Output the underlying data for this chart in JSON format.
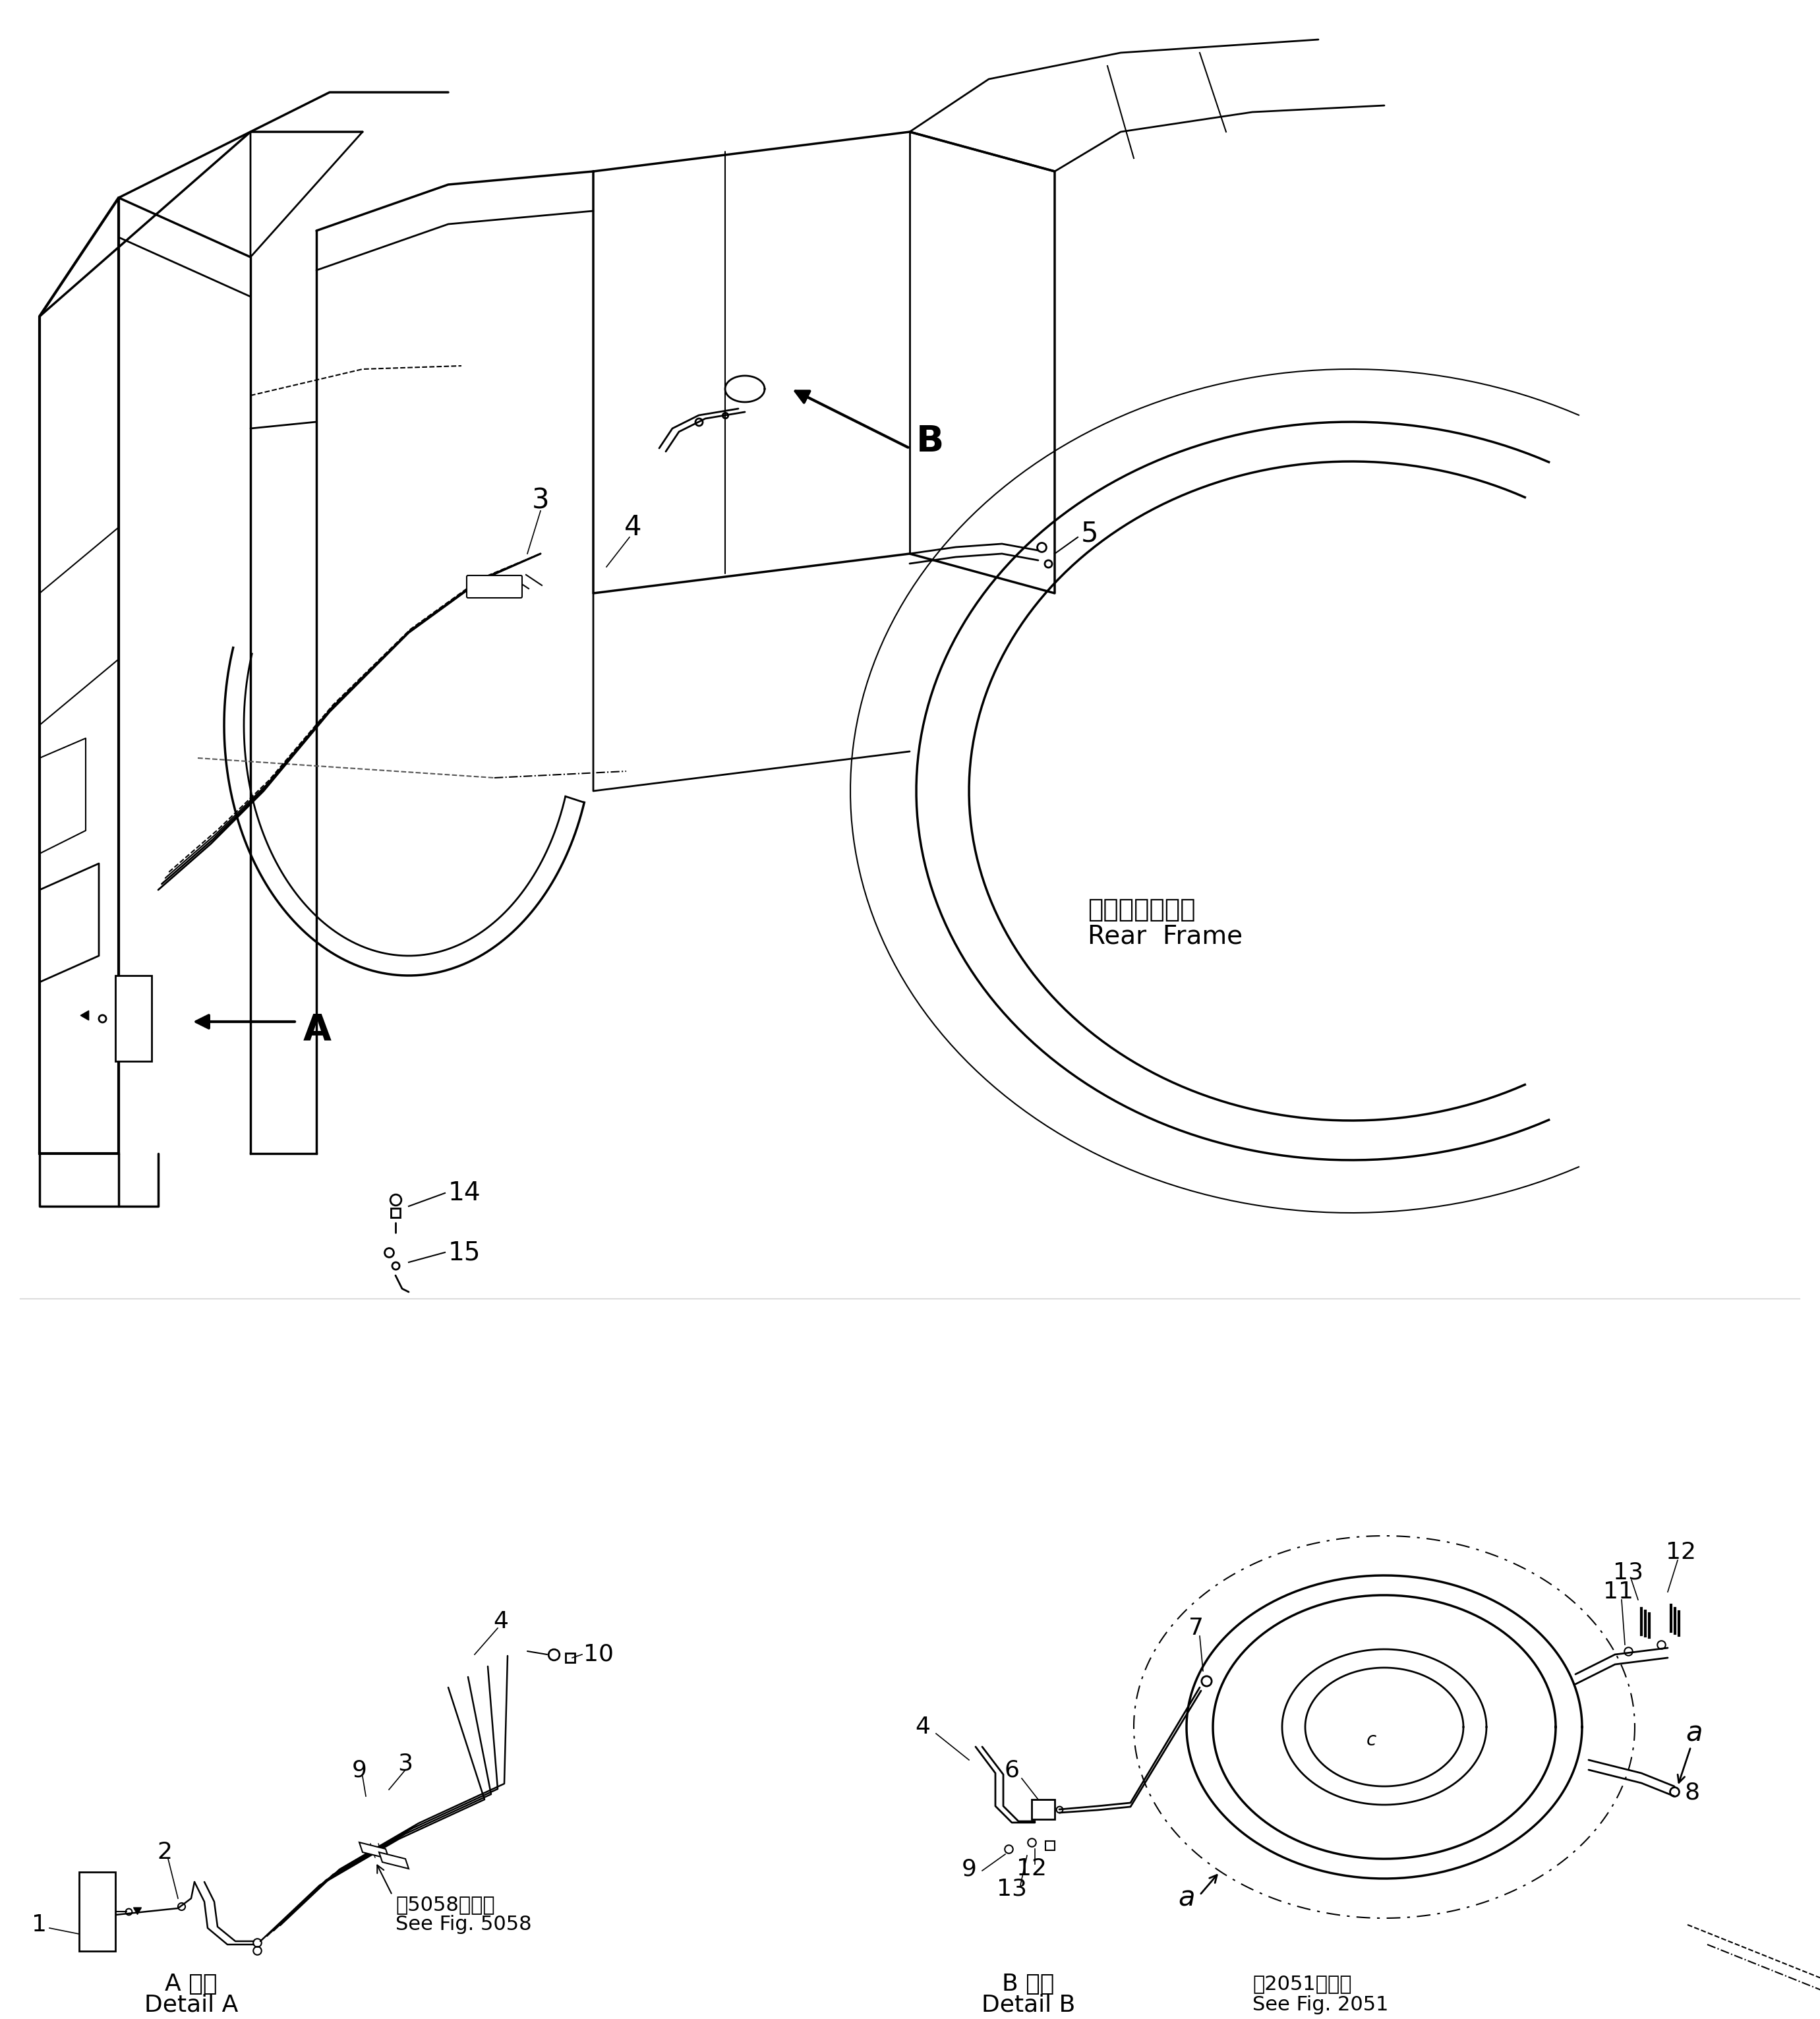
{
  "bg_color": "#ffffff",
  "line_color": "#000000",
  "fig_width": 27.61,
  "fig_height": 30.63,
  "labels": {
    "rear_frame_jp": "リヤーフレーム",
    "rear_frame_en": "Rear  Frame",
    "detail_a_jp": "A 詳細",
    "detail_a_en": "Detail A",
    "detail_b_jp": "B 詳細",
    "detail_b_en": "Detail B",
    "see_fig_5058_jp": "図5058図参照",
    "see_fig_5058_en": "See Fig. 5058",
    "see_fig_2051_jp": "図2051図参照",
    "see_fig_2051_en": "See Fig. 2051"
  }
}
